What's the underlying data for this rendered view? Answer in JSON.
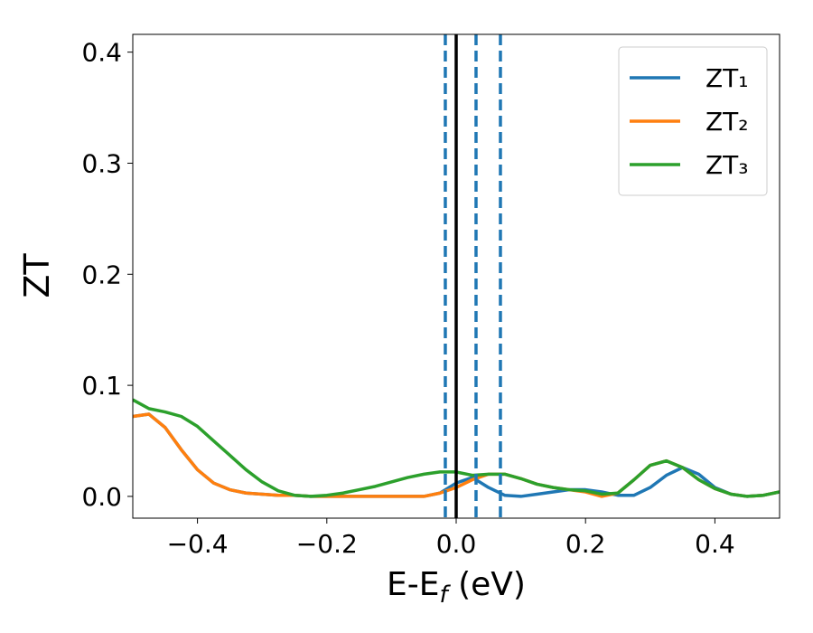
{
  "chart_data": {
    "type": "line",
    "xlabel": [
      "E-E",
      "f",
      " (eV)"
    ],
    "ylabel": "ZT",
    "x": [
      -0.5,
      -0.475,
      -0.45,
      -0.425,
      -0.4,
      -0.375,
      -0.35,
      -0.325,
      -0.3,
      -0.275,
      -0.25,
      -0.225,
      -0.2,
      -0.175,
      -0.15,
      -0.125,
      -0.1,
      -0.075,
      -0.05,
      -0.025,
      0,
      0.025,
      0.05,
      0.075,
      0.1,
      0.125,
      0.15,
      0.175,
      0.2,
      0.225,
      0.25,
      0.275,
      0.3,
      0.325,
      0.35,
      0.375,
      0.4,
      0.425,
      0.45,
      0.475,
      0.5
    ],
    "series": [
      {
        "name": "ZT₁",
        "color": "#1f77b4",
        "values": [
          0.072,
          0.074,
          0.062,
          0.042,
          0.024,
          0.012,
          0.006,
          0.003,
          0.002,
          0.001,
          0.001,
          0,
          0,
          0,
          0,
          0,
          0,
          0,
          0,
          0.003,
          0.012,
          0.017,
          0.008,
          0.001,
          0,
          0.002,
          0.004,
          0.006,
          0.006,
          0.004,
          0.001,
          0.001,
          0.008,
          0.019,
          0.026,
          0.02,
          0.008,
          0.002,
          0,
          0.001,
          0.004
        ]
      },
      {
        "name": "ZT₂",
        "color": "#ff7f0e",
        "values": [
          0.072,
          0.074,
          0.062,
          0.042,
          0.024,
          0.012,
          0.006,
          0.003,
          0.002,
          0.001,
          0.001,
          0,
          0,
          0,
          0,
          0,
          0,
          0,
          0,
          0.003,
          0.008,
          0.015,
          0.02,
          0.02,
          0.016,
          0.011,
          0.008,
          0.006,
          0.004,
          0,
          0.003,
          0.015,
          0.028,
          0.032,
          0.026,
          0.015,
          0.007,
          0.002,
          0,
          0.001,
          0.004
        ]
      },
      {
        "name": "ZT₃",
        "color": "#2ca02c",
        "values": [
          0.087,
          0.079,
          0.076,
          0.072,
          0.063,
          0.05,
          0.037,
          0.024,
          0.013,
          0.005,
          0.001,
          0,
          0.001,
          0.003,
          0.006,
          0.009,
          0.013,
          0.017,
          0.02,
          0.022,
          0.022,
          0.019,
          0.02,
          0.02,
          0.016,
          0.011,
          0.008,
          0.006,
          0.005,
          0.002,
          0.003,
          0.015,
          0.028,
          0.032,
          0.026,
          0.015,
          0.007,
          0.002,
          0,
          0.001,
          0.004
        ]
      }
    ],
    "vlines": [
      {
        "value": 0,
        "color": "#000000",
        "style": "solid"
      },
      {
        "value": -0.0168,
        "color": "#1f77b4",
        "style": "dashed"
      },
      {
        "value": 0.0307,
        "color": "#1f77b4",
        "style": "dashed"
      },
      {
        "value": 0.0684,
        "color": "#1f77b4",
        "style": "dashed"
      }
    ],
    "xlim": [
      -0.5,
      0.5
    ],
    "ylim": [
      -0.0196,
      0.416
    ],
    "xticks": [
      {
        "value": -0.4,
        "label": "−0.4"
      },
      {
        "value": -0.2,
        "label": "−0.2"
      },
      {
        "value": 0,
        "label": "0.0"
      },
      0.2,
      0.4
    ],
    "yticks": [
      {
        "value": 0,
        "label": "0.0"
      },
      0.1,
      0.2,
      0.3,
      0.4
    ],
    "legend": "upper right"
  }
}
